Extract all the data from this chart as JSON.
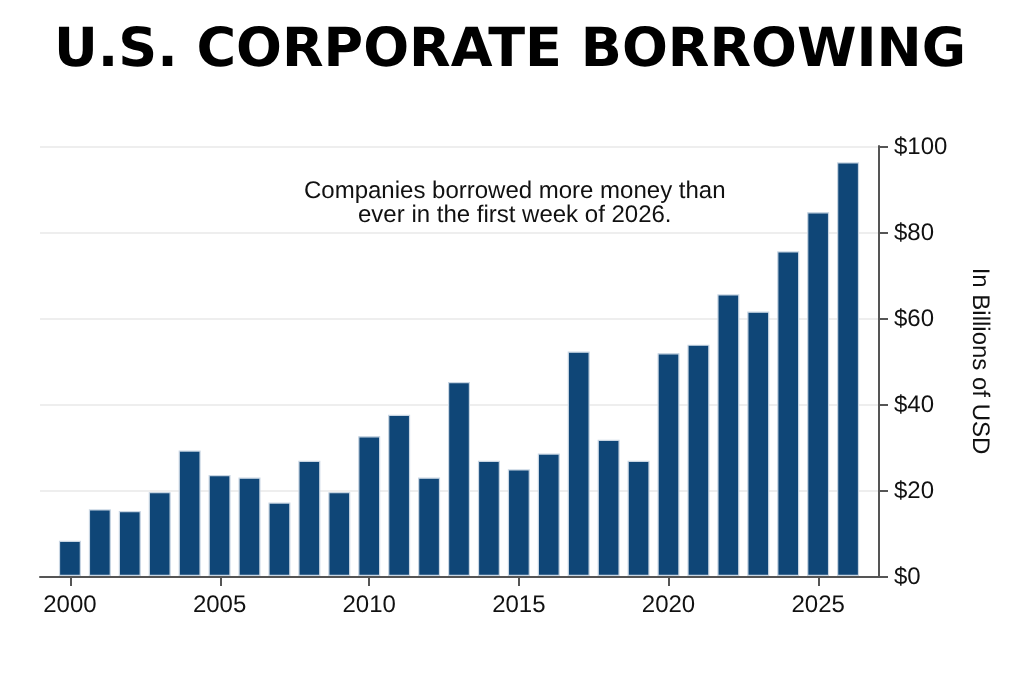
{
  "chart_data": {
    "type": "bar",
    "title": "U.S. CORPORATE BORROWING",
    "ylabel": "In Billions of USD",
    "annotations": [
      "Companies borrowed more money than\never in the first week of 2026."
    ],
    "x": [
      2000,
      2001,
      2002,
      2003,
      2004,
      2005,
      2006,
      2007,
      2008,
      2009,
      2010,
      2011,
      2012,
      2013,
      2014,
      2015,
      2016,
      2017,
      2018,
      2019,
      2020,
      2021,
      2022,
      2023,
      2024,
      2025,
      2026
    ],
    "values": [
      8.2,
      15.5,
      15.1,
      19.5,
      29.2,
      23.5,
      22.9,
      17.1,
      26.8,
      19.5,
      32.5,
      37.5,
      22.9,
      45.1,
      26.8,
      24.8,
      28.5,
      52.2,
      31.7,
      26.8,
      51.8,
      53.8,
      65.5,
      61.5,
      75.5,
      84.6,
      96.2
    ],
    "color": "#0f4677",
    "xlim": [
      1999,
      2027
    ],
    "xticks": [
      2000,
      2005,
      2010,
      2015,
      2020,
      2025
    ],
    "ylim": [
      0,
      100
    ],
    "yticks": [
      {
        "value": 0,
        "label": "$0"
      },
      {
        "value": 20,
        "label": "$20"
      },
      {
        "value": 40,
        "label": "$40"
      },
      {
        "value": 60,
        "label": "$60"
      },
      {
        "value": 80,
        "label": "$80"
      },
      {
        "value": 100,
        "label": "$100"
      }
    ],
    "grid": "y"
  }
}
